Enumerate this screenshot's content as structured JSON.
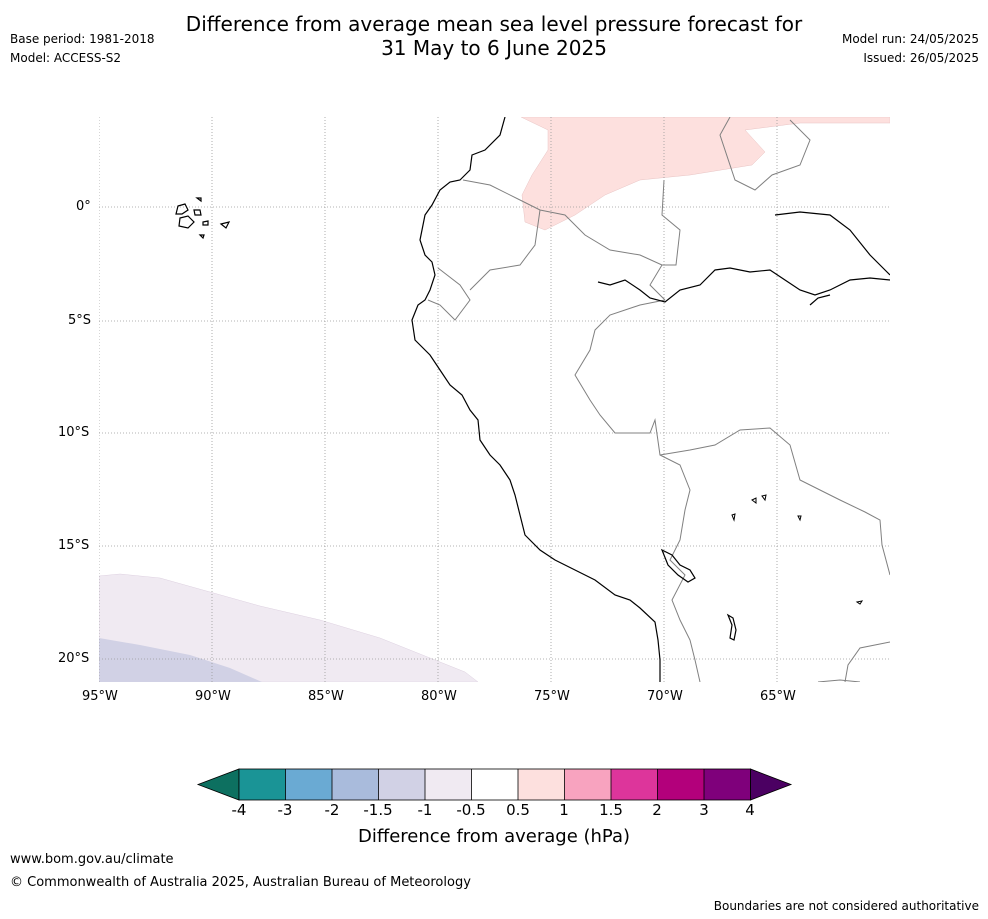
{
  "header": {
    "title_line1": "Difference from average mean sea level pressure forecast for",
    "title_line2": "31 May to 6 June 2025",
    "base_period": "Base period: 1981-2018",
    "model": "Model: ACCESS-S2",
    "model_run": "Model run: 24/05/2025",
    "issued": "Issued: 26/05/2025"
  },
  "map": {
    "lat_labels": [
      "0°",
      "5°S",
      "10°S",
      "15°S",
      "20°S"
    ],
    "lon_labels": [
      "95°W",
      "90°W",
      "85°W",
      "80°W",
      "75°W",
      "70°W",
      "65°W"
    ],
    "colors": {
      "coastline": "#000000",
      "borders": "#808080",
      "grid": "#999999",
      "anomaly_pos_0_5_1": "#fde0de",
      "anomaly_neg_0_5_1": "#f0eaf2",
      "anomaly_neg_1_1_5": "#d1d1e5"
    }
  },
  "colorbar": {
    "label": "Difference from average (hPa)",
    "ticks": [
      "-4",
      "-3",
      "-2",
      "-1.5",
      "-1",
      "-0.5",
      "0.5",
      "1",
      "1.5",
      "2",
      "3",
      "4"
    ],
    "colors": [
      "#0d7060",
      "#1a9496",
      "#6aaad3",
      "#a9bbdc",
      "#d1d1e5",
      "#f0eaf2",
      "#ffffff",
      "#fde0de",
      "#f8a3bf",
      "#dd359b",
      "#b3007b",
      "#7f007b",
      "#4b0062"
    ]
  },
  "footer": {
    "website": "www.bom.gov.au/climate",
    "copyright": "© Commonwealth of Australia 2025, Australian Bureau of Meteorology",
    "disclaimer": "Boundaries are not considered authoritative"
  }
}
